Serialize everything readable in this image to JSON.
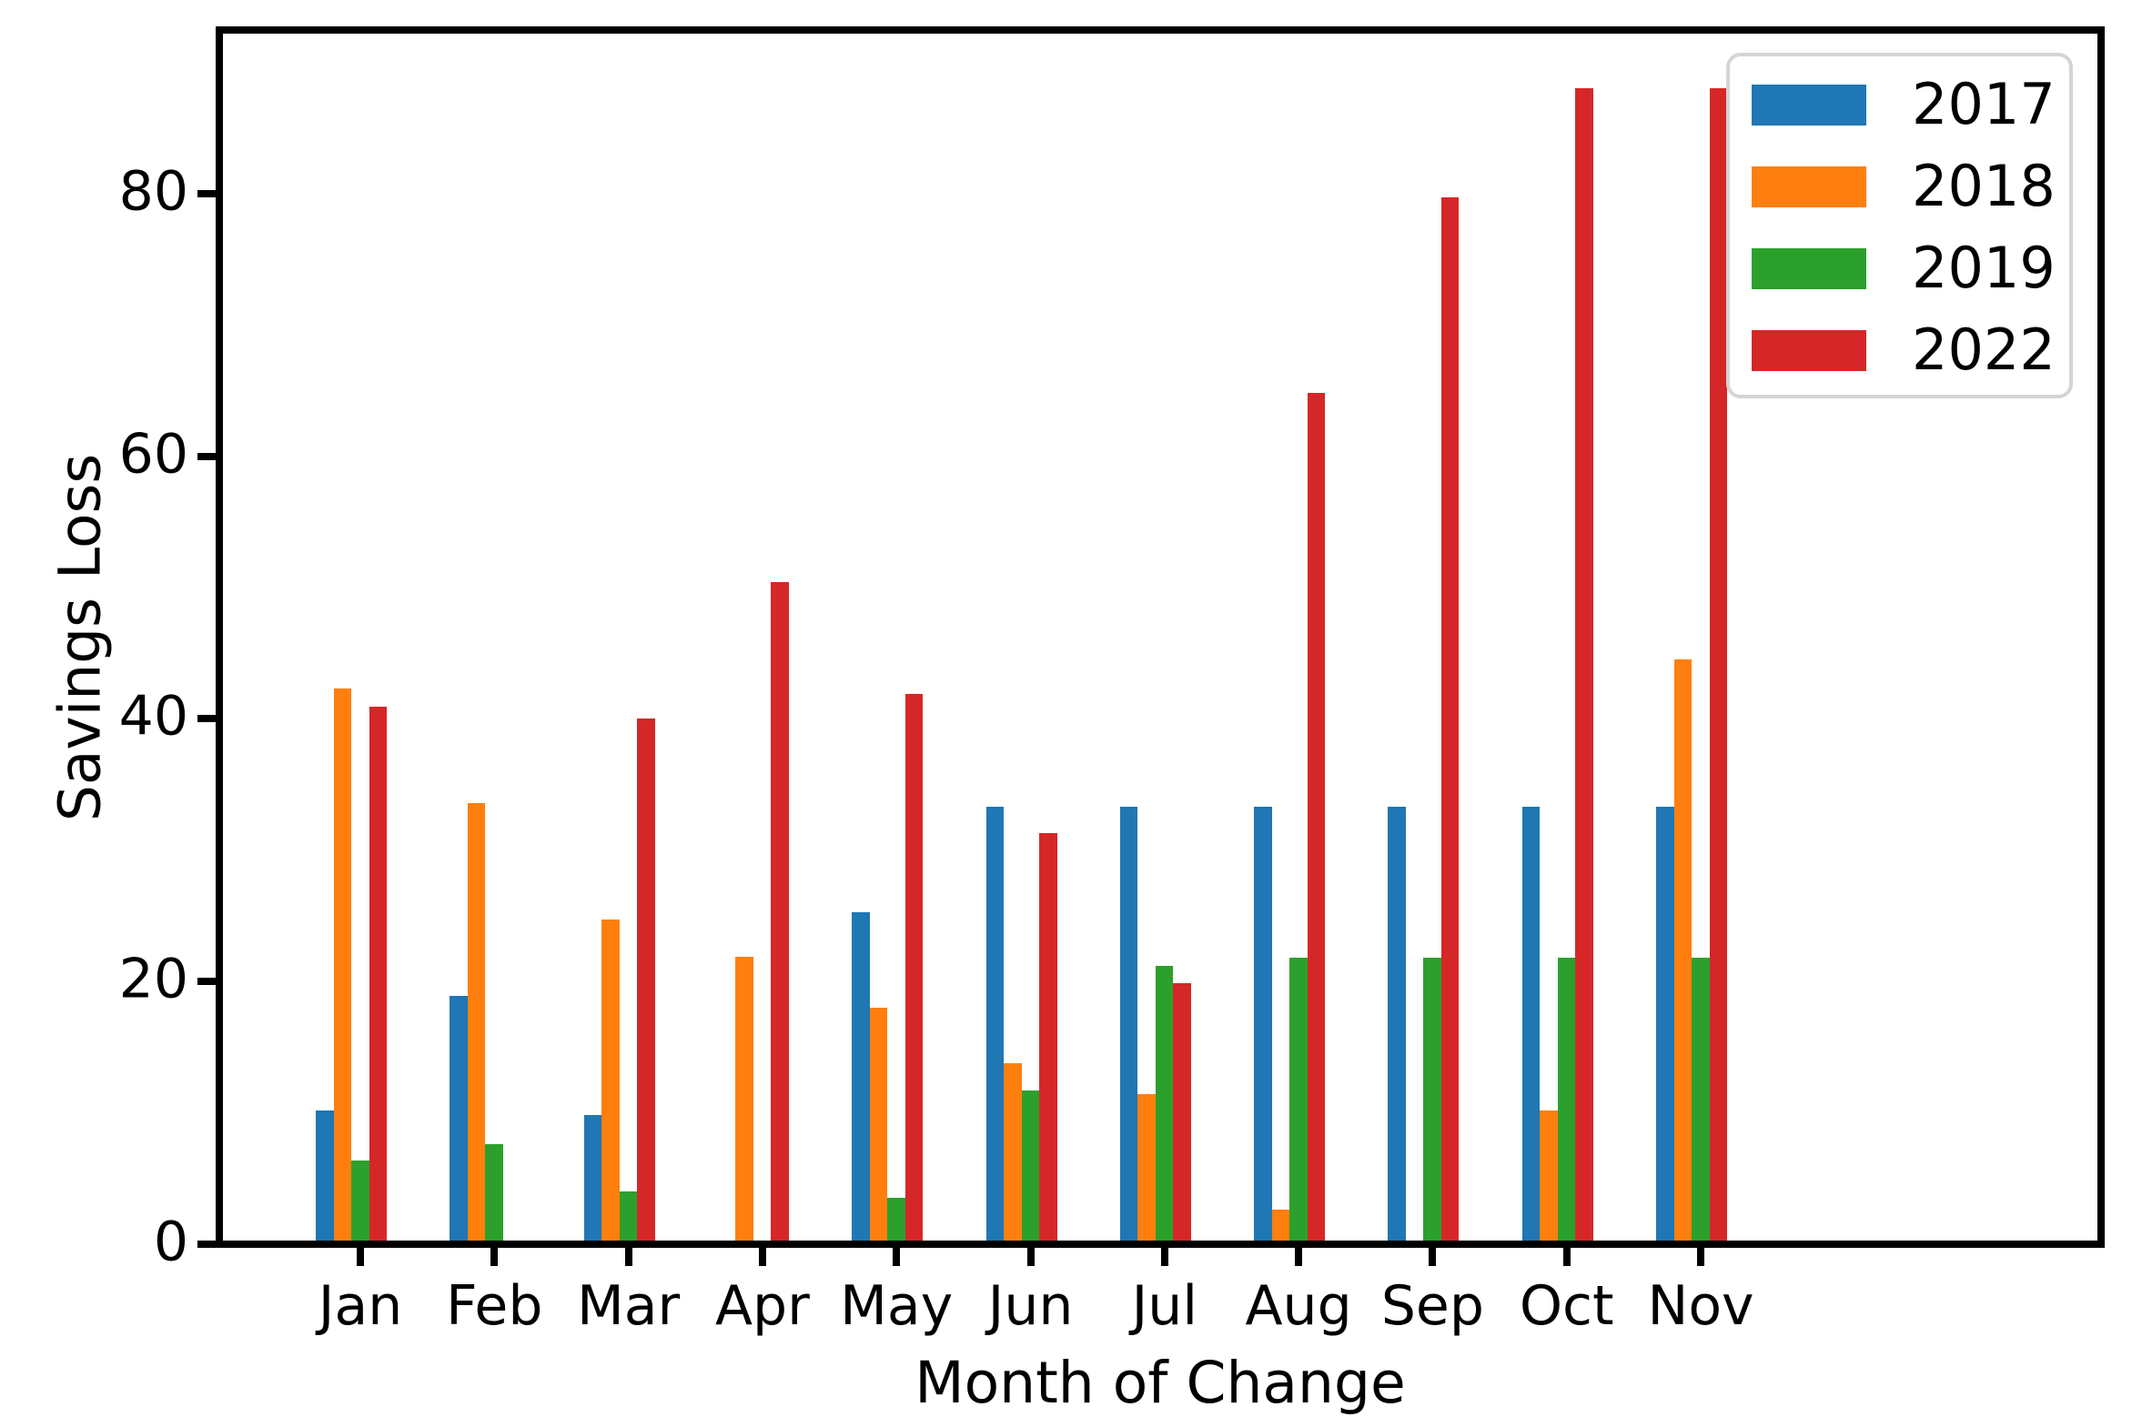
{
  "chart_data": {
    "type": "bar",
    "title": "",
    "xlabel": "Month of Change",
    "ylabel": "Savings Loss",
    "categories": [
      "Jan",
      "Feb",
      "Mar",
      "Apr",
      "May",
      "Jun",
      "Jul",
      "Aug",
      "Sep",
      "Oct",
      "Nov"
    ],
    "y_ticks": [
      0,
      20,
      40,
      60,
      80
    ],
    "ylim": [
      0,
      92.4
    ],
    "grid": false,
    "legend_position": "upper right",
    "series": [
      {
        "name": "2017",
        "color": "#1f77b4",
        "values": [
          10.2,
          18.9,
          9.8,
          0,
          25.3,
          33.3,
          33.3,
          33.3,
          33.3,
          33.3,
          33.3
        ]
      },
      {
        "name": "2018",
        "color": "#ff7f0e",
        "values": [
          42.3,
          33.6,
          24.7,
          21.9,
          18.0,
          13.8,
          11.4,
          2.6,
          0,
          10.2,
          44.5
        ]
      },
      {
        "name": "2019",
        "color": "#2ca02c",
        "values": [
          6.4,
          7.6,
          4.0,
          0,
          3.5,
          11.7,
          21.2,
          21.8,
          21.8,
          21.8,
          21.8
        ]
      },
      {
        "name": "2022",
        "color": "#d62728",
        "values": [
          40.9,
          0,
          40.0,
          50.4,
          41.9,
          31.3,
          19.9,
          64.8,
          79.7,
          88.0,
          88.0
        ]
      }
    ]
  }
}
